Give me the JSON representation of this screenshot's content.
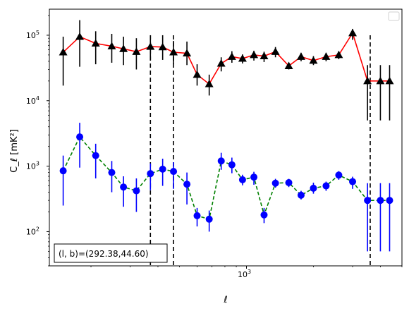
{
  "chart_data": {
    "type": "scatter",
    "title": "",
    "xlabel": "ℓ",
    "ylabel": "C_ℓ  [mK²]",
    "xscale": "log",
    "yscale": "log",
    "xlim": [
      130,
      5000
    ],
    "ylim": [
      30,
      250000
    ],
    "grid": false,
    "legend_position": "top-right",
    "x_ticks": [
      {
        "value": 1000,
        "label": "10",
        "exponent": "3"
      }
    ],
    "y_ticks": [
      {
        "value": 100,
        "label": "10",
        "exponent": "2"
      },
      {
        "value": 1000,
        "label": "10",
        "exponent": "3"
      },
      {
        "value": 10000,
        "label": "10",
        "exponent": "4"
      },
      {
        "value": 100000,
        "label": "10",
        "exponent": "5"
      }
    ],
    "annotation": "(l, b)=(292.38,44.60)",
    "vlines": {
      "x": [
        370,
        470,
        3600
      ],
      "style": "dashed",
      "color": "#000000"
    },
    "series": [
      {
        "color_marker": "#000000",
        "color_line": "#ff0000",
        "line_style": "solid",
        "marker": "triangle",
        "errorbar_color": "#000000",
        "x": [
          150,
          178,
          210,
          248,
          280,
          320,
          370,
          420,
          470,
          540,
          600,
          680,
          770,
          860,
          960,
          1080,
          1200,
          1350,
          1550,
          1760,
          2000,
          2280,
          2600,
          3000,
          3500,
          4000,
          4400
        ],
        "y": [
          55000,
          95000,
          75000,
          68000,
          62000,
          56000,
          67000,
          66000,
          55000,
          53000,
          25000,
          18000,
          37000,
          47000,
          44000,
          50000,
          48000,
          56000,
          34000,
          47000,
          41000,
          47000,
          50000,
          108000,
          20000,
          20000,
          20000
        ],
        "yerr_low": [
          17000,
          33000,
          36000,
          38000,
          35000,
          30000,
          42000,
          42000,
          36000,
          35000,
          17000,
          12000,
          28000,
          38000,
          37000,
          41000,
          39000,
          46000,
          30000,
          40000,
          35000,
          40000,
          43000,
          85000,
          5000,
          5000,
          5000
        ],
        "yerr_high": [
          95000,
          170000,
          115000,
          105000,
          95000,
          90000,
          100000,
          100000,
          82000,
          80000,
          36000,
          25000,
          46000,
          57000,
          51000,
          58000,
          56000,
          66000,
          38000,
          54000,
          48000,
          54000,
          57000,
          125000,
          35000,
          35000,
          35000
        ]
      },
      {
        "color_marker": "#0000ff",
        "color_line": "#008000",
        "line_style": "dashed",
        "marker": "circle",
        "errorbar_color": "#0000ff",
        "x": [
          150,
          178,
          210,
          248,
          280,
          320,
          370,
          420,
          470,
          540,
          600,
          680,
          770,
          860,
          960,
          1080,
          1200,
          1350,
          1550,
          1760,
          2000,
          2280,
          2600,
          3000,
          3500,
          4000,
          4400
        ],
        "y": [
          850,
          2800,
          1450,
          800,
          480,
          420,
          770,
          900,
          830,
          530,
          175,
          155,
          1200,
          1050,
          620,
          680,
          180,
          550,
          560,
          360,
          460,
          500,
          730,
          580,
          300,
          300,
          300
        ],
        "yerr_low": [
          250,
          950,
          650,
          400,
          240,
          200,
          430,
          500,
          450,
          260,
          120,
          100,
          880,
          780,
          510,
          520,
          135,
          470,
          480,
          310,
          380,
          420,
          620,
          450,
          50,
          50,
          50
        ],
        "yerr_high": [
          1450,
          4600,
          2200,
          1200,
          700,
          650,
          1100,
          1300,
          1150,
          800,
          230,
          210,
          1600,
          1350,
          740,
          820,
          230,
          640,
          640,
          420,
          560,
          580,
          840,
          690,
          550,
          550,
          550
        ]
      }
    ]
  }
}
